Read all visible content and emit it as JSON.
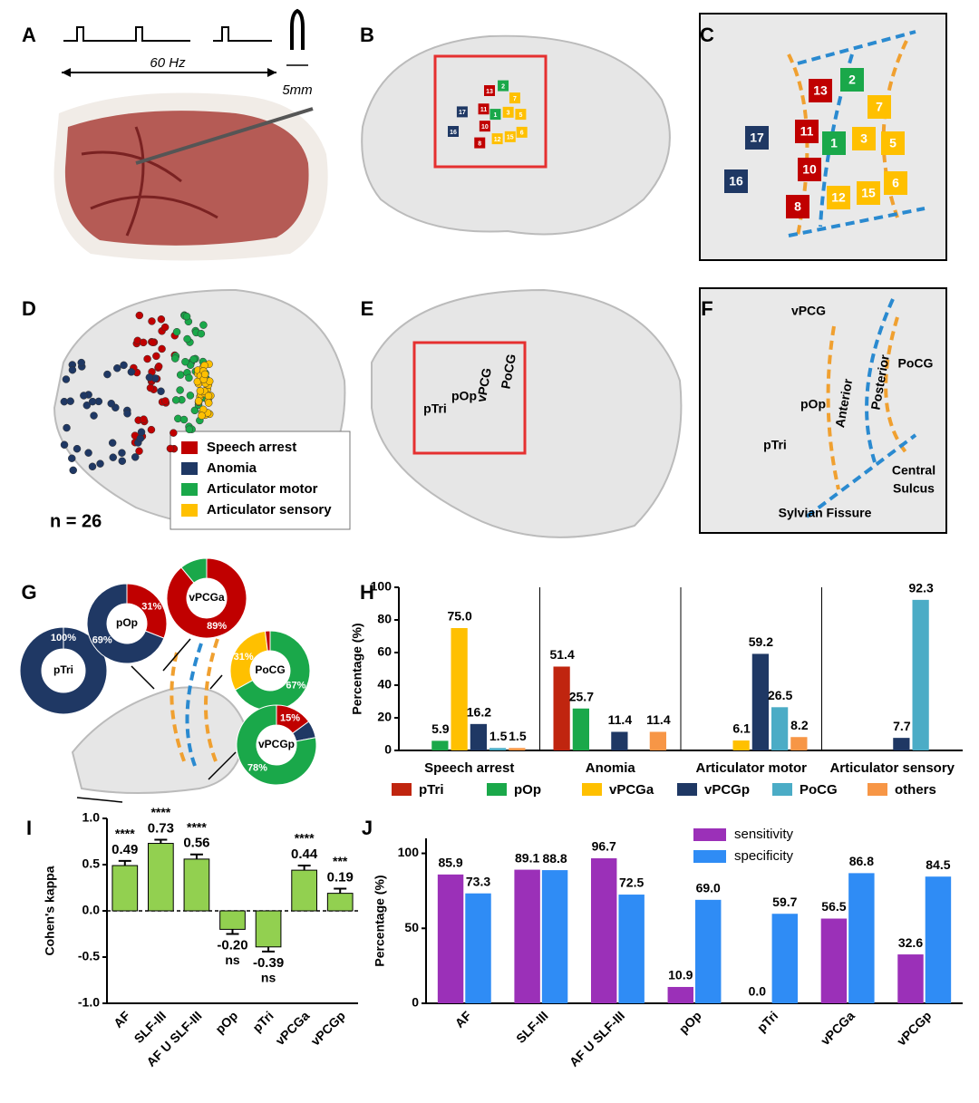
{
  "panels": {
    "A": {
      "label": "A",
      "frequency": "60 Hz",
      "scale": "5mm"
    },
    "B": {
      "label": "B"
    },
    "C": {
      "label": "C"
    },
    "electrodes": [
      {
        "label": "13",
        "color": "#c00000"
      },
      {
        "label": "2",
        "color": "#1aa84a"
      },
      {
        "label": "7",
        "color": "#ffc000"
      },
      {
        "label": "17",
        "color": "#1f3864"
      },
      {
        "label": "11",
        "color": "#c00000"
      },
      {
        "label": "1",
        "color": "#1aa84a"
      },
      {
        "label": "3",
        "color": "#ffc000"
      },
      {
        "label": "5",
        "color": "#ffc000"
      },
      {
        "label": "16",
        "color": "#1f3864"
      },
      {
        "label": "10",
        "color": "#c00000"
      },
      {
        "label": "12",
        "color": "#ffc000"
      },
      {
        "label": "15",
        "color": "#ffc000"
      },
      {
        "label": "6",
        "color": "#ffc000"
      },
      {
        "label": "8",
        "color": "#c00000"
      }
    ],
    "D": {
      "label": "D",
      "legend": [
        {
          "name": "Speech arrest",
          "color": "#c00000"
        },
        {
          "name": "Anomia",
          "color": "#1f3864"
        },
        {
          "name": "Articulator motor",
          "color": "#1aa84a"
        },
        {
          "name": "Articulator sensory",
          "color": "#ffc000"
        }
      ],
      "n_label": "n = 26"
    },
    "E": {
      "label": "E",
      "regions": [
        "pTri",
        "pOp",
        "vPCG",
        "PoCG"
      ]
    },
    "F": {
      "label": "F",
      "regions": [
        "vPCG",
        "PoCG",
        "pOp",
        "Anterior",
        "Posterior",
        "pTri",
        "Central",
        "Sulcus",
        "Sylvian Fissure"
      ]
    },
    "G": {
      "label": "G"
    },
    "H": {
      "label": "H"
    },
    "I": {
      "label": "I"
    },
    "J": {
      "label": "J"
    }
  },
  "chart_data": [
    {
      "type": "bar",
      "ylabel": "Percentage (%)",
      "categories": [
        "Speech arrest",
        "Anomia",
        "Articulator motor",
        "Articulator sensory"
      ],
      "ylim": [
        0,
        100
      ],
      "yticks": [
        0,
        20,
        40,
        60,
        80,
        100
      ],
      "series": [
        {
          "name": "pTri",
          "color": "#c0250f",
          "values": [
            0,
            51.4,
            0,
            0
          ],
          "value_labels": [
            null,
            "51.4",
            null,
            null
          ]
        },
        {
          "name": "pOp",
          "color": "#1aa84a",
          "values": [
            5.9,
            25.7,
            0,
            0
          ],
          "value_labels": [
            "5.9",
            "25.7",
            null,
            null
          ]
        },
        {
          "name": "vPCGa",
          "color": "#ffc000",
          "values": [
            75.0,
            0,
            6.1,
            0
          ],
          "value_labels": [
            "75.0",
            null,
            "6.1",
            null
          ]
        },
        {
          "name": "vPCGp",
          "color": "#1f3864",
          "values": [
            16.2,
            11.4,
            59.2,
            7.7
          ],
          "value_labels": [
            "16.2",
            "11.4",
            "59.2",
            "7.7"
          ]
        },
        {
          "name": "PoCG",
          "color": "#4bacc6",
          "values": [
            1.5,
            0,
            26.5,
            92.3
          ],
          "value_labels": [
            "1.5",
            null,
            "26.5",
            "92.3"
          ]
        },
        {
          "name": "others",
          "color": "#f79646",
          "values": [
            1.5,
            11.4,
            8.2,
            0
          ],
          "value_labels": [
            "1.5",
            "11.4",
            "8.2",
            null
          ]
        }
      ]
    },
    {
      "type": "errorbar",
      "ylabel": "Cohen's kappa",
      "color": "#92d050",
      "categories": [
        "AF",
        "SLF-III",
        "AF U SLF-III",
        "pOp",
        "pTri",
        "vPCGa",
        "vPCGp"
      ],
      "values": [
        0.49,
        0.73,
        0.56,
        -0.2,
        -0.39,
        0.44,
        0.19
      ],
      "errors": [
        0.05,
        0.04,
        0.05,
        0.05,
        0.05,
        0.05,
        0.05
      ],
      "value_labels": [
        "0.49",
        "0.73",
        "0.56",
        "-0.20",
        "-0.39",
        "0.44",
        "0.19"
      ],
      "annotations": [
        "****",
        "****",
        "****",
        "ns",
        "ns",
        "****",
        "***"
      ],
      "ylim": [
        -1,
        1
      ],
      "yticks": [
        {
          "value": -1,
          "label": "-1.0"
        },
        {
          "value": -0.5,
          "label": "-0.5"
        },
        {
          "value": 0,
          "label": "0.0"
        },
        {
          "value": 0.5,
          "label": "0.5"
        },
        {
          "value": 1,
          "label": "1.0"
        }
      ]
    },
    {
      "type": "bar",
      "ylabel": "Percentage (%)",
      "categories": [
        "AF",
        "SLF-III",
        "AF U SLF-III",
        "pOp",
        "pTri",
        "vPCGa",
        "vPCGp"
      ],
      "ylim": [
        0,
        110
      ],
      "yticks": [
        0,
        50,
        100
      ],
      "series": [
        {
          "name": "sensitivity",
          "color": "#9b30b8",
          "values": [
            85.9,
            89.1,
            96.7,
            10.9,
            0.0,
            56.5,
            32.6
          ],
          "value_labels": [
            "85.9",
            "89.1",
            "96.7",
            "10.9",
            "0.0",
            "56.5",
            "32.6"
          ]
        },
        {
          "name": "specificity",
          "color": "#2f8cf5",
          "values": [
            73.3,
            88.8,
            72.5,
            69.0,
            59.7,
            86.8,
            84.5
          ],
          "value_labels": [
            "73.3",
            "88.8",
            "72.5",
            "69.0",
            "59.7",
            "86.8",
            "84.5"
          ]
        }
      ]
    },
    {
      "type": "pie",
      "title": "pTri",
      "values": [
        100
      ],
      "colors": [
        "#1f3864"
      ],
      "value_labels": [
        "100%"
      ]
    },
    {
      "type": "pie",
      "title": "pOp",
      "values": [
        31,
        69
      ],
      "colors": [
        "#c00000",
        "#1f3864"
      ],
      "value_labels": [
        "31%",
        "69%"
      ]
    },
    {
      "type": "pie",
      "title": "vPCGa",
      "values": [
        89,
        11
      ],
      "colors": [
        "#c00000",
        "#1aa84a"
      ],
      "value_labels": [
        "89%",
        null
      ]
    },
    {
      "type": "pie",
      "title": "PoCG",
      "values": [
        67,
        31,
        2
      ],
      "colors": [
        "#1aa84a",
        "#ffc000",
        "#c00000"
      ],
      "value_labels": [
        "67%",
        "31%",
        null
      ]
    },
    {
      "type": "pie",
      "title": "vPCGp",
      "values": [
        15,
        7,
        78
      ],
      "colors": [
        "#c00000",
        "#1f3864",
        "#1aa84a"
      ],
      "value_labels": [
        "15%",
        null,
        "78%"
      ]
    }
  ]
}
